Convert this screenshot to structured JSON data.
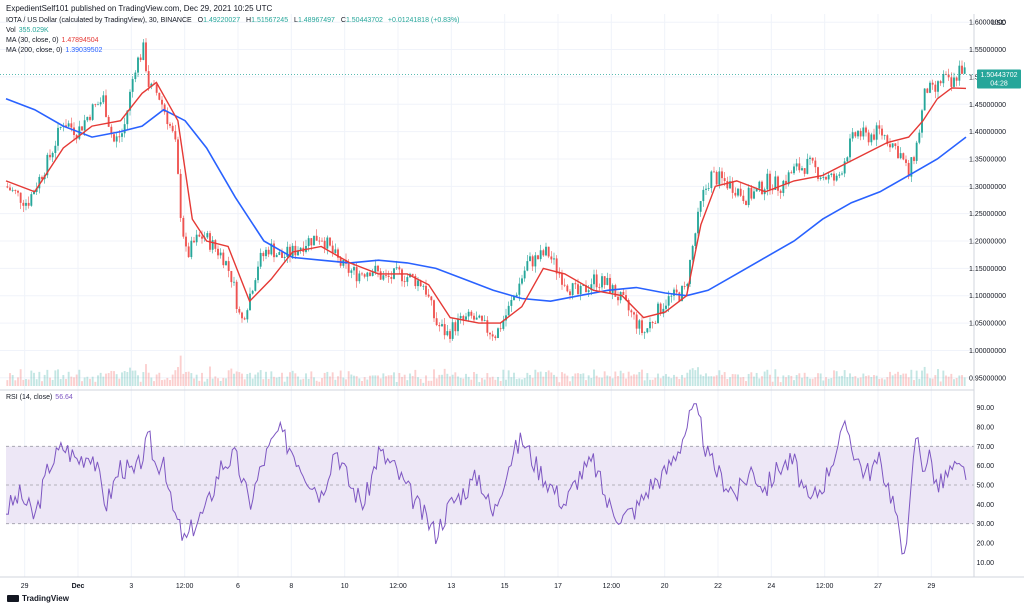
{
  "header": {
    "published": "ExpedientSelf101 published on TradingView.com, Dec 29, 2021 10:25 UTC",
    "symbol": "IOTA / US Dollar (calculated by TradingView), 30, BINANCE",
    "open_label": "O",
    "open": "1.49220027",
    "high_label": "H",
    "high": "1.51567245",
    "low_label": "L",
    "low": "1.48967497",
    "close_label": "C",
    "close": "1.50443702",
    "change": "+0.01241818 (+0.83%)"
  },
  "legends": {
    "vol_label": "Vol",
    "vol_value": "355.029K",
    "ma30_label": "MA (30, close, 0)",
    "ma30_value": "1.47894504",
    "ma200_label": "MA (200, close, 0)",
    "ma200_value": "1.39039502",
    "rsi_label": "RSI (14, close)",
    "rsi_value": "56.64"
  },
  "price_tag": {
    "value": "1.50443702",
    "countdown": "04:28"
  },
  "currency": "USD",
  "watermark": "TradingView",
  "colors": {
    "up": "#26a69a",
    "down": "#ef5350",
    "ma30": "#e53935",
    "ma200": "#2962ff",
    "rsi": "#7e57c2",
    "rsi_band": "#ede7f6",
    "tag": "#26a69a"
  },
  "chart_data": [
    {
      "type": "candlestick",
      "x_tick_labels": [
        "29",
        "Dec",
        "3",
        "12:00",
        "6",
        "8",
        "10",
        "12:00",
        "13",
        "15",
        "17",
        "12:00",
        "20",
        "22",
        "24",
        "12:00",
        "27",
        "29"
      ],
      "y_tick_labels": [
        "1.60000000",
        "1.55000000",
        "1.50000000",
        "1.45000000",
        "1.40000000",
        "1.35000000",
        "1.30000000",
        "1.25000000",
        "1.20000000",
        "1.15000000",
        "1.10000000",
        "1.05000000",
        "1.00000000",
        "0.95000000"
      ],
      "ylim": [
        0.935,
        1.615
      ],
      "close_path": [
        [
          0,
          1.3
        ],
        [
          1.5,
          1.27
        ],
        [
          3,
          1.35
        ],
        [
          4,
          1.42
        ],
        [
          5,
          1.4
        ],
        [
          6,
          1.44
        ],
        [
          6.8,
          1.46
        ],
        [
          7.5,
          1.38
        ],
        [
          8.2,
          1.4
        ],
        [
          9,
          1.52
        ],
        [
          9.6,
          1.55
        ],
        [
          10,
          1.48
        ],
        [
          10.6,
          1.47
        ],
        [
          11.2,
          1.43
        ],
        [
          11.8,
          1.38
        ],
        [
          12.2,
          1.25
        ],
        [
          12.6,
          1.17
        ],
        [
          13.2,
          1.2
        ],
        [
          13.8,
          1.21
        ],
        [
          14.5,
          1.19
        ],
        [
          15.2,
          1.17
        ],
        [
          15.8,
          1.13
        ],
        [
          16.4,
          1.05
        ],
        [
          17,
          1.1
        ],
        [
          17.6,
          1.16
        ],
        [
          18.4,
          1.19
        ],
        [
          19.2,
          1.17
        ],
        [
          20,
          1.18
        ],
        [
          21,
          1.2
        ],
        [
          22,
          1.21
        ],
        [
          22.5,
          1.19
        ],
        [
          23,
          1.17
        ],
        [
          23.6,
          1.15
        ],
        [
          24.5,
          1.14
        ],
        [
          25.5,
          1.15
        ],
        [
          26.5,
          1.13
        ],
        [
          27.5,
          1.14
        ],
        [
          28.5,
          1.13
        ],
        [
          29.2,
          1.12
        ],
        [
          30,
          1.05
        ],
        [
          30.8,
          1.03
        ],
        [
          31.5,
          1.05
        ],
        [
          32.5,
          1.06
        ],
        [
          33.5,
          1.04
        ],
        [
          34.2,
          1.03
        ],
        [
          35,
          1.07
        ],
        [
          35.8,
          1.12
        ],
        [
          36.4,
          1.16
        ],
        [
          37.2,
          1.17
        ],
        [
          37.8,
          1.18
        ],
        [
          38.4,
          1.15
        ],
        [
          39.2,
          1.12
        ],
        [
          40,
          1.1
        ],
        [
          41,
          1.13
        ],
        [
          42,
          1.12
        ],
        [
          43,
          1.09
        ],
        [
          43.8,
          1.06
        ],
        [
          44.5,
          1.03
        ],
        [
          45.2,
          1.06
        ],
        [
          46,
          1.09
        ],
        [
          46.8,
          1.1
        ],
        [
          47.4,
          1.11
        ],
        [
          48,
          1.2
        ],
        [
          48.6,
          1.28
        ],
        [
          49.2,
          1.32
        ],
        [
          50,
          1.31
        ],
        [
          50.8,
          1.3
        ],
        [
          51.6,
          1.28
        ],
        [
          52.4,
          1.29
        ],
        [
          53.2,
          1.31
        ],
        [
          54,
          1.3
        ],
        [
          55,
          1.33
        ],
        [
          56,
          1.34
        ],
        [
          57,
          1.32
        ],
        [
          58,
          1.31
        ],
        [
          58.8,
          1.37
        ],
        [
          59.4,
          1.4
        ],
        [
          60,
          1.39
        ],
        [
          61,
          1.4
        ],
        [
          61.8,
          1.38
        ],
        [
          62.4,
          1.36
        ],
        [
          63,
          1.32
        ],
        [
          63.6,
          1.38
        ],
        [
          64.2,
          1.48
        ],
        [
          64.8,
          1.47
        ],
        [
          65.4,
          1.5
        ],
        [
          66,
          1.48
        ],
        [
          66.6,
          1.52
        ],
        [
          67,
          1.504
        ]
      ],
      "x_range": [
        0,
        67
      ],
      "ma30": [
        [
          0,
          1.31
        ],
        [
          2,
          1.29
        ],
        [
          4,
          1.37
        ],
        [
          6,
          1.41
        ],
        [
          8,
          1.42
        ],
        [
          9.5,
          1.47
        ],
        [
          10.5,
          1.49
        ],
        [
          12,
          1.42
        ],
        [
          13,
          1.24
        ],
        [
          14,
          1.2
        ],
        [
          15.5,
          1.19
        ],
        [
          17,
          1.09
        ],
        [
          18.5,
          1.13
        ],
        [
          20,
          1.18
        ],
        [
          22,
          1.19
        ],
        [
          24,
          1.16
        ],
        [
          26,
          1.14
        ],
        [
          28,
          1.14
        ],
        [
          29.5,
          1.12
        ],
        [
          31,
          1.06
        ],
        [
          33,
          1.05
        ],
        [
          34.5,
          1.05
        ],
        [
          36,
          1.08
        ],
        [
          37.5,
          1.15
        ],
        [
          39,
          1.14
        ],
        [
          41,
          1.11
        ],
        [
          43,
          1.1
        ],
        [
          44.5,
          1.06
        ],
        [
          46,
          1.07
        ],
        [
          47.5,
          1.1
        ],
        [
          48.5,
          1.23
        ],
        [
          49.5,
          1.3
        ],
        [
          51,
          1.31
        ],
        [
          53,
          1.29
        ],
        [
          55,
          1.31
        ],
        [
          57,
          1.32
        ],
        [
          58.5,
          1.34
        ],
        [
          60,
          1.36
        ],
        [
          61.5,
          1.38
        ],
        [
          63,
          1.39
        ],
        [
          64,
          1.42
        ],
        [
          65,
          1.46
        ],
        [
          66,
          1.48
        ],
        [
          67,
          1.479
        ]
      ],
      "ma200": [
        [
          0,
          1.46
        ],
        [
          2,
          1.44
        ],
        [
          4,
          1.41
        ],
        [
          6,
          1.39
        ],
        [
          8,
          1.4
        ],
        [
          9.5,
          1.41
        ],
        [
          11,
          1.44
        ],
        [
          12.5,
          1.42
        ],
        [
          14,
          1.37
        ],
        [
          16,
          1.28
        ],
        [
          18,
          1.2
        ],
        [
          20,
          1.17
        ],
        [
          22,
          1.165
        ],
        [
          24,
          1.16
        ],
        [
          26,
          1.165
        ],
        [
          28,
          1.16
        ],
        [
          30,
          1.15
        ],
        [
          32,
          1.13
        ],
        [
          34,
          1.11
        ],
        [
          36,
          1.095
        ],
        [
          38,
          1.09
        ],
        [
          40,
          1.1
        ],
        [
          42,
          1.11
        ],
        [
          44,
          1.115
        ],
        [
          46,
          1.105
        ],
        [
          47.5,
          1.1
        ],
        [
          49,
          1.11
        ],
        [
          51,
          1.14
        ],
        [
          53,
          1.17
        ],
        [
          55,
          1.2
        ],
        [
          57,
          1.24
        ],
        [
          59,
          1.27
        ],
        [
          61,
          1.29
        ],
        [
          63,
          1.32
        ],
        [
          65,
          1.35
        ],
        [
          67,
          1.39
        ]
      ]
    },
    {
      "type": "line",
      "name": "RSI (14, close)",
      "y_tick_labels": [
        "90.00",
        "80.00",
        "70.00",
        "60.00",
        "50.00",
        "40.00",
        "30.00",
        "20.00",
        "10.00"
      ],
      "ylim": [
        5,
        95
      ],
      "bands": [
        30,
        50,
        70
      ],
      "points": [
        [
          0,
          37
        ],
        [
          1,
          45
        ],
        [
          2,
          33
        ],
        [
          3,
          60
        ],
        [
          4,
          70
        ],
        [
          5,
          63
        ],
        [
          6,
          67
        ],
        [
          7,
          40
        ],
        [
          8,
          60
        ],
        [
          9,
          55
        ],
        [
          10,
          74
        ],
        [
          10.5,
          58
        ],
        [
          11,
          66
        ],
        [
          11.5,
          40
        ],
        [
          12,
          30
        ],
        [
          12.5,
          20
        ],
        [
          13,
          28
        ],
        [
          14,
          38
        ],
        [
          15,
          60
        ],
        [
          16,
          65
        ],
        [
          17,
          40
        ],
        [
          18,
          63
        ],
        [
          19,
          78
        ],
        [
          20,
          68
        ],
        [
          21,
          55
        ],
        [
          22,
          45
        ],
        [
          23,
          70
        ],
        [
          24,
          50
        ],
        [
          25,
          40
        ],
        [
          26,
          67
        ],
        [
          27,
          60
        ],
        [
          28,
          48
        ],
        [
          29,
          36
        ],
        [
          30,
          25
        ],
        [
          31,
          40
        ],
        [
          32,
          47
        ],
        [
          33,
          55
        ],
        [
          34,
          34
        ],
        [
          35,
          60
        ],
        [
          36,
          74
        ],
        [
          37,
          60
        ],
        [
          38,
          50
        ],
        [
          39,
          40
        ],
        [
          40,
          55
        ],
        [
          41,
          62
        ],
        [
          42,
          40
        ],
        [
          43,
          33
        ],
        [
          44,
          38
        ],
        [
          45,
          50
        ],
        [
          46,
          56
        ],
        [
          47,
          70
        ],
        [
          48,
          90
        ],
        [
          48.5,
          80
        ],
        [
          49,
          64
        ],
        [
          50,
          53
        ],
        [
          51,
          45
        ],
        [
          52,
          58
        ],
        [
          53,
          48
        ],
        [
          54,
          60
        ],
        [
          55,
          62
        ],
        [
          56,
          40
        ],
        [
          57,
          50
        ],
        [
          58,
          70
        ],
        [
          58.7,
          80
        ],
        [
          59.3,
          65
        ],
        [
          60,
          56
        ],
        [
          61,
          62
        ],
        [
          62,
          40
        ],
        [
          62.5,
          15
        ],
        [
          63,
          30
        ],
        [
          63.5,
          77
        ],
        [
          64,
          60
        ],
        [
          64.5,
          65
        ],
        [
          65,
          48
        ],
        [
          66,
          58
        ],
        [
          67,
          56.64
        ]
      ]
    }
  ]
}
